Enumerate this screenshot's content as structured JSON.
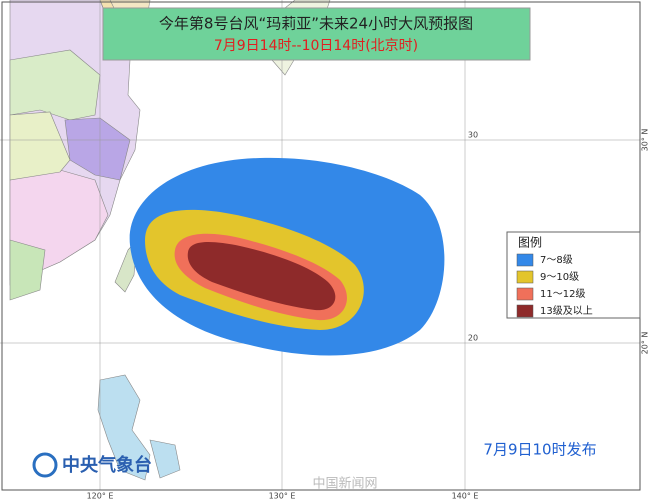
{
  "header": {
    "title": "今年第8号台风“玛莉亚”未来24小时大风预报图",
    "subtitle": "7月9日14时--10日14时(北京时)"
  },
  "legend": {
    "title": "图例",
    "items": [
      {
        "label": "7～8级",
        "color": "#3388e8"
      },
      {
        "label": "9～10级",
        "color": "#e3c52c"
      },
      {
        "label": "11～12级",
        "color": "#f0705a"
      },
      {
        "label": "13级及以上",
        "color": "#8e2a2a"
      }
    ]
  },
  "axes": {
    "longitude_labels": [
      "120° E",
      "130° E",
      "140° E"
    ],
    "latitude_labels": [
      "30° N",
      "20° N"
    ],
    "grid_labels": [
      "30",
      "20"
    ]
  },
  "issued": "7月9日10时发布",
  "agency": "中央气象台",
  "watermark": "中国新闻网"
}
